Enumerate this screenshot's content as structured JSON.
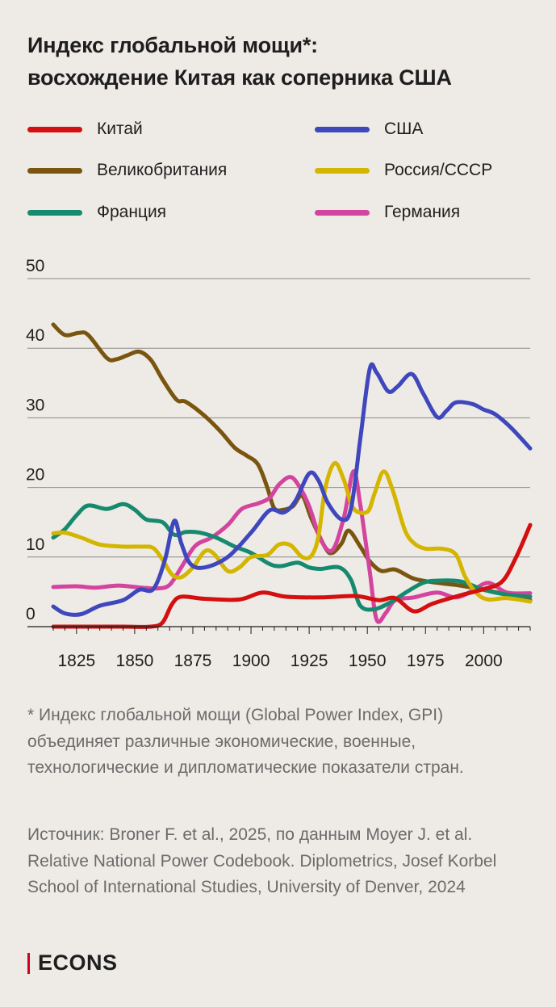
{
  "title": {
    "line1": "Индекс глобальной мощи*:",
    "line2": "восхождение Китая как соперника США"
  },
  "legend": [
    {
      "label": "Китай",
      "color": "#d40f0f"
    },
    {
      "label": "США",
      "color": "#3f47bd"
    },
    {
      "label": "Великобритания",
      "color": "#7a5510"
    },
    {
      "label": "Россия/СССР",
      "color": "#d4b500"
    },
    {
      "label": "Франция",
      "color": "#168a6e"
    },
    {
      "label": "Германия",
      "color": "#d4449e"
    }
  ],
  "chart_data": {
    "type": "line",
    "title": "Индекс глобальной мощи*: восхождение Китая как соперника США",
    "xlabel": "",
    "ylabel": "",
    "xlim": [
      1815,
      2020
    ],
    "ylim": [
      0,
      50
    ],
    "xticks": [
      1825,
      1850,
      1875,
      1900,
      1925,
      1950,
      1975,
      2000
    ],
    "yticks": [
      0,
      10,
      20,
      30,
      40,
      50
    ],
    "grid": "horizontal",
    "legend_position": "top",
    "series": [
      {
        "name": "Китай",
        "color": "#d40f0f",
        "points": [
          [
            1815,
            0
          ],
          [
            1830,
            0
          ],
          [
            1845,
            0
          ],
          [
            1857,
            0
          ],
          [
            1862,
            0.6
          ],
          [
            1866,
            3.2
          ],
          [
            1870,
            4.3
          ],
          [
            1880,
            4.0
          ],
          [
            1895,
            3.9
          ],
          [
            1905,
            4.9
          ],
          [
            1915,
            4.3
          ],
          [
            1930,
            4.2
          ],
          [
            1945,
            4.4
          ],
          [
            1955,
            3.8
          ],
          [
            1962,
            4.1
          ],
          [
            1970,
            2.2
          ],
          [
            1978,
            3.3
          ],
          [
            1990,
            4.5
          ],
          [
            2000,
            5.4
          ],
          [
            2008,
            6.5
          ],
          [
            2014,
            10
          ],
          [
            2020,
            14.6
          ]
        ]
      },
      {
        "name": "США",
        "color": "#3f47bd",
        "points": [
          [
            1815,
            2.9
          ],
          [
            1820,
            1.9
          ],
          [
            1827,
            1.8
          ],
          [
            1835,
            3.0
          ],
          [
            1845,
            3.8
          ],
          [
            1852,
            5.3
          ],
          [
            1858,
            5.4
          ],
          [
            1863,
            9.6
          ],
          [
            1867,
            15.2
          ],
          [
            1870,
            12.0
          ],
          [
            1874,
            9.0
          ],
          [
            1880,
            8.5
          ],
          [
            1890,
            10.0
          ],
          [
            1900,
            13.5
          ],
          [
            1908,
            16.7
          ],
          [
            1914,
            16.4
          ],
          [
            1919,
            18.0
          ],
          [
            1925,
            22.0
          ],
          [
            1929,
            21.0
          ],
          [
            1933,
            17.8
          ],
          [
            1939,
            15.4
          ],
          [
            1943,
            17.0
          ],
          [
            1947,
            27.0
          ],
          [
            1951,
            37.0
          ],
          [
            1954,
            36.5
          ],
          [
            1959,
            33.8
          ],
          [
            1963,
            34.5
          ],
          [
            1969,
            36.3
          ],
          [
            1974,
            33.5
          ],
          [
            1980,
            30.1
          ],
          [
            1984,
            31.0
          ],
          [
            1988,
            32.2
          ],
          [
            1995,
            32.0
          ],
          [
            2000,
            31.2
          ],
          [
            2005,
            30.5
          ],
          [
            2012,
            28.5
          ],
          [
            2020,
            25.6
          ]
        ]
      },
      {
        "name": "Великобритания",
        "color": "#7a5510",
        "points": [
          [
            1815,
            43.4
          ],
          [
            1820,
            41.9
          ],
          [
            1826,
            42.2
          ],
          [
            1830,
            41.9
          ],
          [
            1838,
            38.6
          ],
          [
            1842,
            38.4
          ],
          [
            1847,
            39.0
          ],
          [
            1852,
            39.5
          ],
          [
            1857,
            38.3
          ],
          [
            1862,
            35.5
          ],
          [
            1868,
            32.6
          ],
          [
            1872,
            32.3
          ],
          [
            1880,
            30.3
          ],
          [
            1887,
            28.0
          ],
          [
            1893,
            25.7
          ],
          [
            1898,
            24.6
          ],
          [
            1903,
            23.3
          ],
          [
            1907,
            20.0
          ],
          [
            1910,
            17.0
          ],
          [
            1914,
            16.8
          ],
          [
            1918,
            17.3
          ],
          [
            1922,
            18.8
          ],
          [
            1926,
            15.5
          ],
          [
            1932,
            11.3
          ],
          [
            1935,
            10.6
          ],
          [
            1939,
            12.0
          ],
          [
            1942,
            13.8
          ],
          [
            1947,
            11.5
          ],
          [
            1951,
            9.4
          ],
          [
            1956,
            8.0
          ],
          [
            1962,
            8.2
          ],
          [
            1970,
            6.9
          ],
          [
            1980,
            6.3
          ],
          [
            1990,
            5.9
          ],
          [
            2000,
            5.3
          ],
          [
            2010,
            4.6
          ],
          [
            2020,
            3.8
          ]
        ]
      },
      {
        "name": "Россия/СССР",
        "color": "#d4b500",
        "points": [
          [
            1815,
            13.4
          ],
          [
            1820,
            13.5
          ],
          [
            1827,
            12.8
          ],
          [
            1835,
            11.8
          ],
          [
            1845,
            11.5
          ],
          [
            1853,
            11.5
          ],
          [
            1858,
            11.3
          ],
          [
            1862,
            9.6
          ],
          [
            1866,
            7.5
          ],
          [
            1870,
            7.1
          ],
          [
            1875,
            8.5
          ],
          [
            1880,
            10.8
          ],
          [
            1884,
            10.5
          ],
          [
            1890,
            8.0
          ],
          [
            1895,
            8.5
          ],
          [
            1900,
            10.0
          ],
          [
            1907,
            10.3
          ],
          [
            1912,
            11.8
          ],
          [
            1917,
            11.7
          ],
          [
            1922,
            10.0
          ],
          [
            1926,
            10.2
          ],
          [
            1929,
            13.0
          ],
          [
            1932,
            20.0
          ],
          [
            1936,
            23.5
          ],
          [
            1940,
            21.0
          ],
          [
            1944,
            17.0
          ],
          [
            1950,
            16.5
          ],
          [
            1953,
            19.0
          ],
          [
            1957,
            22.3
          ],
          [
            1961,
            19.5
          ],
          [
            1966,
            14.0
          ],
          [
            1970,
            12.0
          ],
          [
            1975,
            11.2
          ],
          [
            1982,
            11.2
          ],
          [
            1988,
            10.4
          ],
          [
            1992,
            7.2
          ],
          [
            1997,
            4.8
          ],
          [
            2002,
            3.9
          ],
          [
            2010,
            4.1
          ],
          [
            2020,
            3.6
          ]
        ]
      },
      {
        "name": "Франция",
        "color": "#168a6e",
        "points": [
          [
            1815,
            12.8
          ],
          [
            1820,
            14.0
          ],
          [
            1825,
            16.0
          ],
          [
            1830,
            17.4
          ],
          [
            1838,
            16.9
          ],
          [
            1845,
            17.6
          ],
          [
            1850,
            16.8
          ],
          [
            1855,
            15.4
          ],
          [
            1862,
            15.0
          ],
          [
            1867,
            13.2
          ],
          [
            1872,
            13.6
          ],
          [
            1878,
            13.5
          ],
          [
            1885,
            12.8
          ],
          [
            1893,
            11.5
          ],
          [
            1900,
            10.6
          ],
          [
            1908,
            9.0
          ],
          [
            1913,
            8.7
          ],
          [
            1920,
            9.2
          ],
          [
            1925,
            8.5
          ],
          [
            1930,
            8.3
          ],
          [
            1938,
            8.5
          ],
          [
            1943,
            6.7
          ],
          [
            1947,
            3.0
          ],
          [
            1953,
            2.5
          ],
          [
            1960,
            3.5
          ],
          [
            1967,
            5.0
          ],
          [
            1974,
            6.3
          ],
          [
            1980,
            6.6
          ],
          [
            1990,
            6.5
          ],
          [
            2000,
            5.3
          ],
          [
            2010,
            4.6
          ],
          [
            2020,
            4.3
          ]
        ]
      },
      {
        "name": "Германия",
        "color": "#d4449e",
        "points": [
          [
            1815,
            5.7
          ],
          [
            1825,
            5.8
          ],
          [
            1833,
            5.6
          ],
          [
            1843,
            5.9
          ],
          [
            1853,
            5.6
          ],
          [
            1860,
            5.5
          ],
          [
            1865,
            6.0
          ],
          [
            1870,
            8.5
          ],
          [
            1876,
            11.6
          ],
          [
            1883,
            12.8
          ],
          [
            1890,
            14.6
          ],
          [
            1896,
            16.9
          ],
          [
            1903,
            17.7
          ],
          [
            1908,
            18.5
          ],
          [
            1912,
            20.4
          ],
          [
            1917,
            21.5
          ],
          [
            1921,
            20.0
          ],
          [
            1925,
            17.3
          ],
          [
            1930,
            12.5
          ],
          [
            1935,
            11.0
          ],
          [
            1940,
            15.8
          ],
          [
            1944,
            22.3
          ],
          [
            1947,
            17.5
          ],
          [
            1951,
            8.0
          ],
          [
            1954,
            1.0
          ],
          [
            1958,
            2.0
          ],
          [
            1962,
            3.8
          ],
          [
            1970,
            4.2
          ],
          [
            1980,
            4.9
          ],
          [
            1988,
            4.2
          ],
          [
            1995,
            5.1
          ],
          [
            2002,
            6.3
          ],
          [
            2010,
            4.9
          ],
          [
            2020,
            4.8
          ]
        ]
      }
    ]
  },
  "note": "* Индекс глобальной мощи (Global Power Index, GPI) объединяет различные экономические, военные, технологические и дипломатические показатели стран.",
  "source": "Источник: Broner F. et al., 2025, по данным Moyer J. et al. Relative National Power Codebook. Diplometrics, Josef Korbel School of International Studies, University of Denver, 2024",
  "brand": {
    "name": "ECONS",
    "accent": "#d0021b"
  }
}
